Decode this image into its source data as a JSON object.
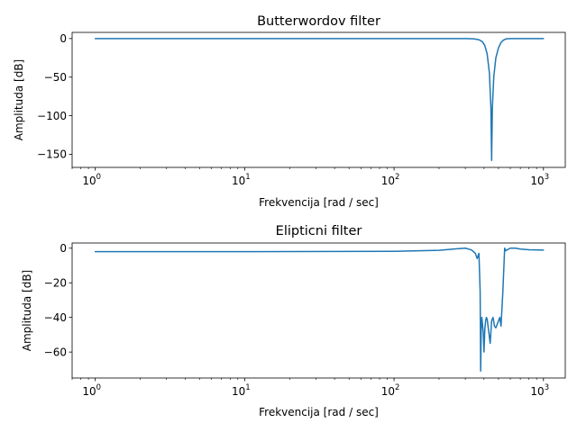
{
  "chart_data": [
    {
      "type": "line",
      "title": "Butterwordov filter",
      "xlabel": "Frekvencija [rad / sec]",
      "ylabel": "Amplituda [dB]",
      "xscale": "log",
      "xlim": [
        0.7,
        1400
      ],
      "ylim": [
        -167,
        8
      ],
      "x_ticks": [
        1,
        10,
        100,
        1000
      ],
      "x_tick_labels": [
        {
          "base": "10",
          "exp": "0"
        },
        {
          "base": "10",
          "exp": "1"
        },
        {
          "base": "10",
          "exp": "2"
        },
        {
          "base": "10",
          "exp": "3"
        }
      ],
      "y_ticks": [
        0,
        -50,
        -100,
        -150
      ],
      "y_tick_labels": [
        "0",
        "−50",
        "−100",
        "−150"
      ],
      "color": "#1f77b4",
      "series": [
        {
          "x": [
            1,
            10,
            100,
            300,
            340,
            370,
            390,
            405,
            420,
            435,
            445,
            450,
            455,
            465,
            480,
            500,
            520,
            540,
            560,
            600,
            1000
          ],
          "values": [
            0,
            0,
            0,
            0,
            -0.3,
            -1.5,
            -4,
            -9,
            -20,
            -45,
            -90,
            -158,
            -90,
            -50,
            -25,
            -12,
            -5,
            -2,
            -0.5,
            0,
            0
          ]
        }
      ]
    },
    {
      "type": "line",
      "title": "Elipticni filter",
      "xlabel": "Frekvencija [rad / sec]",
      "ylabel": "Amplituda [dB]",
      "xscale": "log",
      "xlim": [
        0.7,
        1400
      ],
      "ylim": [
        -75,
        3
      ],
      "x_ticks": [
        1,
        10,
        100,
        1000
      ],
      "x_tick_labels": [
        {
          "base": "10",
          "exp": "0"
        },
        {
          "base": "10",
          "exp": "1"
        },
        {
          "base": "10",
          "exp": "2"
        },
        {
          "base": "10",
          "exp": "3"
        }
      ],
      "y_ticks": [
        0,
        -20,
        -40,
        -60
      ],
      "y_tick_labels": [
        "0",
        "−20",
        "−40",
        "−60"
      ],
      "color": "#1f77b4",
      "series": [
        {
          "x": [
            1,
            10,
            100,
            200,
            260,
            300,
            330,
            350,
            360,
            370,
            377,
            380,
            383,
            387,
            395,
            400,
            405,
            410,
            415,
            420,
            430,
            440,
            450,
            460,
            470,
            480,
            490,
            500,
            510,
            520,
            535,
            550,
            560,
            570,
            600,
            650,
            700,
            800,
            1000
          ],
          "values": [
            -2,
            -2,
            -1.8,
            -1.2,
            -0.4,
            0,
            -1,
            -3,
            -6,
            -3,
            -25,
            -71,
            -48,
            -40,
            -48,
            -60,
            -47,
            -42,
            -40,
            -41,
            -48,
            -55,
            -42,
            -40,
            -45,
            -46,
            -44,
            -42,
            -40,
            -45,
            -25,
            0,
            -1.5,
            -1,
            0,
            0,
            -0.5,
            -0.9,
            -1.1
          ]
        }
      ]
    }
  ]
}
